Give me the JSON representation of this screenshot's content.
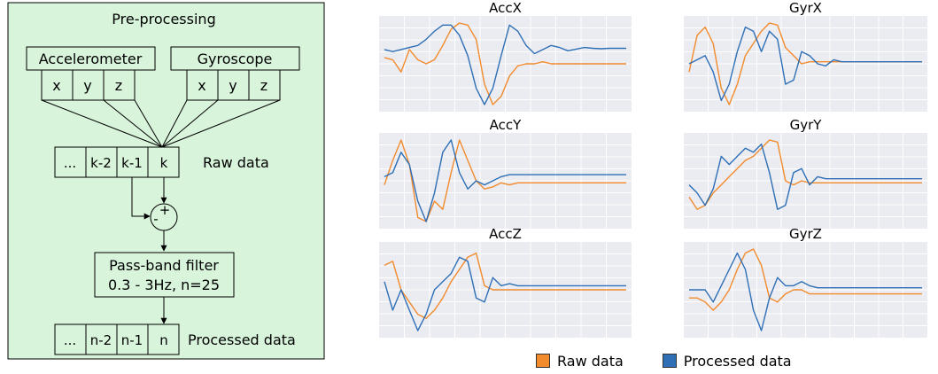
{
  "preprocessing": {
    "title": "Pre-processing",
    "sensors": [
      {
        "label": "Accelerometer",
        "axes": [
          "x",
          "y",
          "z"
        ]
      },
      {
        "label": "Gyroscope",
        "axes": [
          "x",
          "y",
          "z"
        ]
      }
    ],
    "raw_buffer": [
      "...",
      "k-2",
      "k-1",
      "k"
    ],
    "raw_label": "Raw data",
    "sum_plus": "+",
    "sum_minus": "-",
    "filter_line1": "Pass-band filter",
    "filter_line2": "0.3 - 3Hz, n=25",
    "processed_buffer": [
      "...",
      "n-2",
      "n-1",
      "n"
    ],
    "processed_label": "Processed data"
  },
  "colors": {
    "panel_fill": "#d8f5dc",
    "raw": "#f28b2c",
    "processed": "#2e6fb5",
    "plot_bg": "#ebebf2",
    "grid": "#ffffff"
  },
  "legend": {
    "raw_label": "Raw data",
    "processed_label": "Processed data"
  },
  "chart_data": [
    {
      "type": "line",
      "title": "AccX",
      "series": [
        {
          "name": "Raw data",
          "values": [
            0.15,
            0.1,
            -0.2,
            0.35,
            0.1,
            0.0,
            0.1,
            0.45,
            0.85,
            1.0,
            0.95,
            0.6,
            -0.5,
            -1.0,
            -0.8,
            -0.3,
            -0.05,
            0.0,
            0.0,
            0.05,
            0.0,
            0.0,
            0.0,
            0.0,
            0.0,
            0.0,
            0.0,
            0.0,
            0.0,
            0.0
          ]
        },
        {
          "name": "Processed data",
          "values": [
            0.35,
            0.3,
            0.35,
            0.4,
            0.45,
            0.6,
            0.8,
            0.95,
            0.95,
            0.7,
            0.2,
            -0.6,
            -1.0,
            -0.6,
            0.2,
            0.95,
            0.8,
            0.45,
            0.25,
            0.35,
            0.45,
            0.4,
            0.32,
            0.36,
            0.4,
            0.38,
            0.37,
            0.38,
            0.38,
            0.38
          ]
        }
      ]
    },
    {
      "type": "line",
      "title": "GyrX",
      "series": [
        {
          "name": "Raw data",
          "values": [
            -0.2,
            0.7,
            0.9,
            0.5,
            -0.6,
            -1.0,
            -0.5,
            0.2,
            0.5,
            0.8,
            1.0,
            0.95,
            0.4,
            0.2,
            0.0,
            0.05,
            0.05,
            0.05,
            0.05,
            0.05,
            0.05,
            0.05,
            0.05,
            0.05,
            0.05,
            0.05,
            0.05,
            0.05,
            0.05,
            0.05
          ]
        },
        {
          "name": "Processed data",
          "values": [
            0.0,
            0.1,
            0.2,
            -0.2,
            -0.9,
            -0.5,
            0.3,
            0.9,
            0.8,
            0.3,
            0.8,
            0.6,
            -0.5,
            -0.4,
            0.3,
            0.2,
            0.0,
            -0.05,
            0.1,
            0.05,
            0.05,
            0.05,
            0.05,
            0.05,
            0.05,
            0.05,
            0.05,
            0.05,
            0.05,
            0.05
          ]
        }
      ]
    },
    {
      "type": "line",
      "title": "AccY",
      "series": [
        {
          "name": "Raw data",
          "values": [
            -0.1,
            0.5,
            1.0,
            0.4,
            -0.9,
            -1.0,
            -0.5,
            -0.7,
            0.2,
            1.0,
            0.5,
            0.0,
            -0.2,
            -0.15,
            -0.05,
            -0.1,
            -0.05,
            -0.05,
            -0.05,
            -0.05,
            -0.05,
            -0.05,
            -0.05,
            -0.05,
            -0.05,
            -0.05,
            -0.05,
            -0.05,
            -0.05,
            -0.05
          ]
        },
        {
          "name": "Processed data",
          "values": [
            0.1,
            0.2,
            0.7,
            0.4,
            -0.5,
            -1.0,
            -0.3,
            0.7,
            1.0,
            0.2,
            -0.2,
            0.0,
            -0.1,
            0.0,
            0.1,
            0.15,
            0.15,
            0.15,
            0.15,
            0.15,
            0.15,
            0.15,
            0.15,
            0.15,
            0.15,
            0.15,
            0.15,
            0.15,
            0.15,
            0.15
          ]
        }
      ]
    },
    {
      "type": "line",
      "title": "GyrY",
      "series": [
        {
          "name": "Raw data",
          "values": [
            -0.4,
            -0.7,
            -0.6,
            -0.3,
            -0.1,
            0.1,
            0.3,
            0.5,
            0.6,
            0.8,
            1.0,
            0.95,
            0.0,
            -0.1,
            0.0,
            -0.05,
            -0.05,
            -0.05,
            -0.05,
            -0.05,
            -0.05,
            -0.05,
            -0.05,
            -0.05,
            -0.05,
            -0.05,
            -0.05,
            -0.05,
            -0.05,
            -0.05
          ]
        },
        {
          "name": "Processed data",
          "values": [
            -0.1,
            -0.3,
            -0.6,
            -0.2,
            0.6,
            0.4,
            0.6,
            0.8,
            0.7,
            0.9,
            0.2,
            -0.7,
            -0.6,
            0.2,
            0.3,
            -0.1,
            0.1,
            0.05,
            0.05,
            0.05,
            0.05,
            0.05,
            0.05,
            0.05,
            0.05,
            0.05,
            0.05,
            0.05,
            0.05,
            0.05
          ]
        }
      ]
    },
    {
      "type": "line",
      "title": "AccZ",
      "series": [
        {
          "name": "Raw data",
          "values": [
            0.6,
            0.7,
            0.0,
            -0.3,
            -0.6,
            -0.7,
            -0.5,
            -0.2,
            0.2,
            0.5,
            0.8,
            0.9,
            0.1,
            0.0,
            0.0,
            0.0,
            0.0,
            0.0,
            0.0,
            0.0,
            0.0,
            0.0,
            0.0,
            0.0,
            0.0,
            0.0,
            0.0,
            0.0,
            0.0,
            0.0
          ]
        },
        {
          "name": "Processed data",
          "values": [
            0.2,
            -0.5,
            0.0,
            -0.5,
            -1.0,
            -0.6,
            0.0,
            0.2,
            0.4,
            0.8,
            0.7,
            -0.2,
            -0.3,
            0.3,
            0.1,
            0.15,
            0.1,
            0.1,
            0.1,
            0.1,
            0.1,
            0.1,
            0.1,
            0.1,
            0.1,
            0.1,
            0.1,
            0.1,
            0.1,
            0.1
          ]
        }
      ]
    },
    {
      "type": "line",
      "title": "GyrZ",
      "series": [
        {
          "name": "Raw data",
          "values": [
            -0.2,
            -0.2,
            -0.3,
            -0.5,
            -0.3,
            0.0,
            0.5,
            0.9,
            1.0,
            0.6,
            -0.2,
            -0.3,
            -0.1,
            0.0,
            0.0,
            -0.1,
            -0.1,
            -0.1,
            -0.1,
            -0.1,
            -0.1,
            -0.1,
            -0.1,
            -0.1,
            -0.1,
            -0.1,
            -0.1,
            -0.1,
            -0.1,
            -0.1
          ]
        },
        {
          "name": "Processed data",
          "values": [
            0.0,
            0.0,
            0.0,
            -0.3,
            0.1,
            0.5,
            0.9,
            0.5,
            -0.5,
            -1.0,
            -0.2,
            0.3,
            0.1,
            0.1,
            0.2,
            0.1,
            0.05,
            0.05,
            0.05,
            0.05,
            0.05,
            0.05,
            0.05,
            0.05,
            0.05,
            0.05,
            0.05,
            0.05,
            0.05,
            0.05
          ]
        }
      ]
    }
  ]
}
